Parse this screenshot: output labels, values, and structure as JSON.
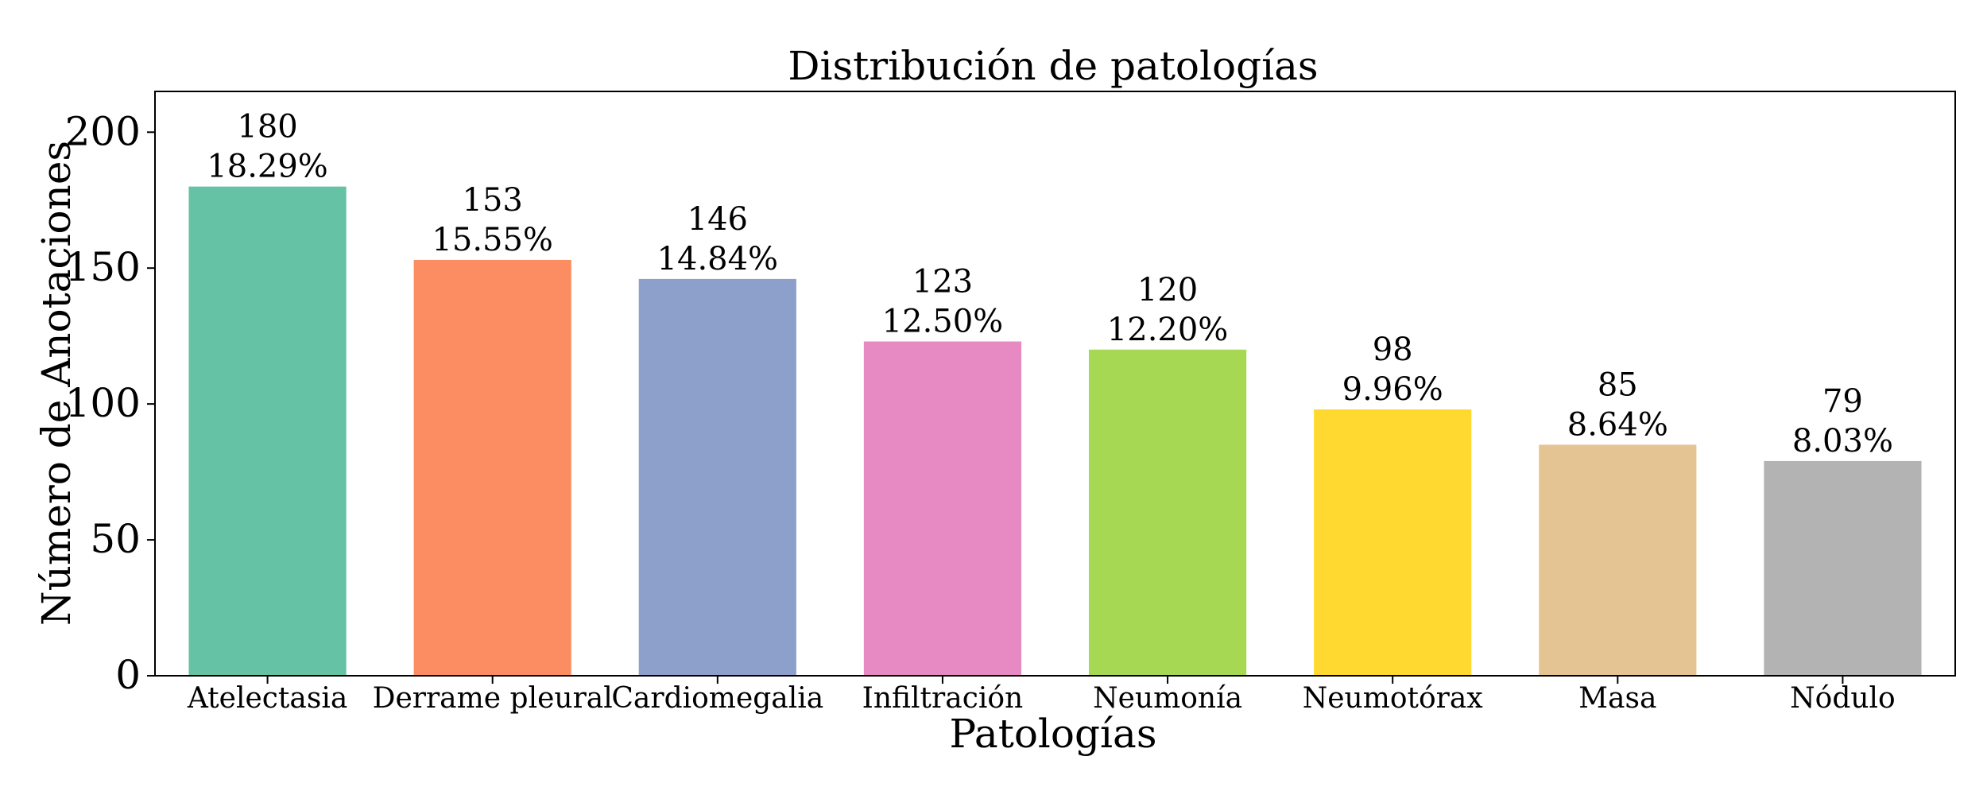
{
  "chart_data": {
    "type": "bar",
    "title": "Distribución de patologías",
    "xlabel": "Patologías",
    "ylabel": "Número de Anotaciones",
    "ylim": [
      0,
      215
    ],
    "yticks": [
      0,
      50,
      100,
      150,
      200
    ],
    "grid": false,
    "categories": [
      "Atelectasia",
      "Derrame pleural",
      "Cardiomegalia",
      "Infiltración",
      "Neumonía",
      "Neumotórax",
      "Masa",
      "Nódulo"
    ],
    "values": [
      180,
      153,
      146,
      123,
      120,
      98,
      85,
      79
    ],
    "percent_labels": [
      "18.29%",
      "15.55%",
      "14.84%",
      "12.50%",
      "12.20%",
      "9.96%",
      "8.64%",
      "8.03%"
    ],
    "colors": [
      "#66c2a5",
      "#fc8d62",
      "#8da0cb",
      "#e78ac3",
      "#a6d854",
      "#ffd92f",
      "#e5c494",
      "#b3b3b3"
    ]
  }
}
